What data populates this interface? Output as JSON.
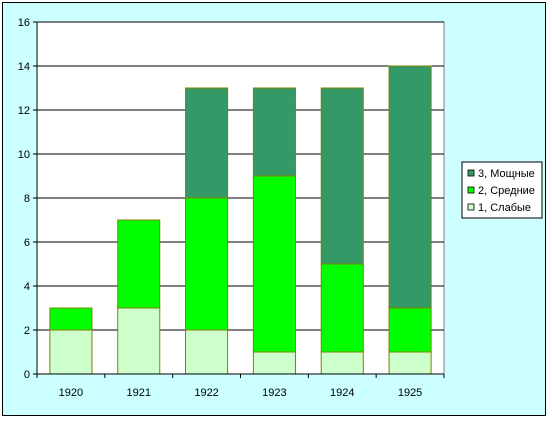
{
  "chart_data": {
    "type": "bar",
    "stacked": true,
    "categories": [
      "1920",
      "1921",
      "1922",
      "1923",
      "1924",
      "1925"
    ],
    "series": [
      {
        "name": "1, Слабые",
        "color": "#ccffcc",
        "values": [
          2,
          3,
          2,
          1,
          1,
          1
        ]
      },
      {
        "name": "2, Средние",
        "color": "#00ff00",
        "values": [
          1,
          4,
          6,
          8,
          4,
          2
        ]
      },
      {
        "name": "3, Мощные",
        "color": "#339966",
        "values": [
          0,
          0,
          5,
          4,
          8,
          11
        ]
      }
    ],
    "ylim": [
      0,
      16
    ],
    "y_ticks": [
      "0",
      "2",
      "4",
      "6",
      "8",
      "10",
      "12",
      "14",
      "16"
    ],
    "grid": true,
    "legend_position": "right",
    "plot_background": "#ffffff",
    "chart_background": "#ccffff"
  }
}
